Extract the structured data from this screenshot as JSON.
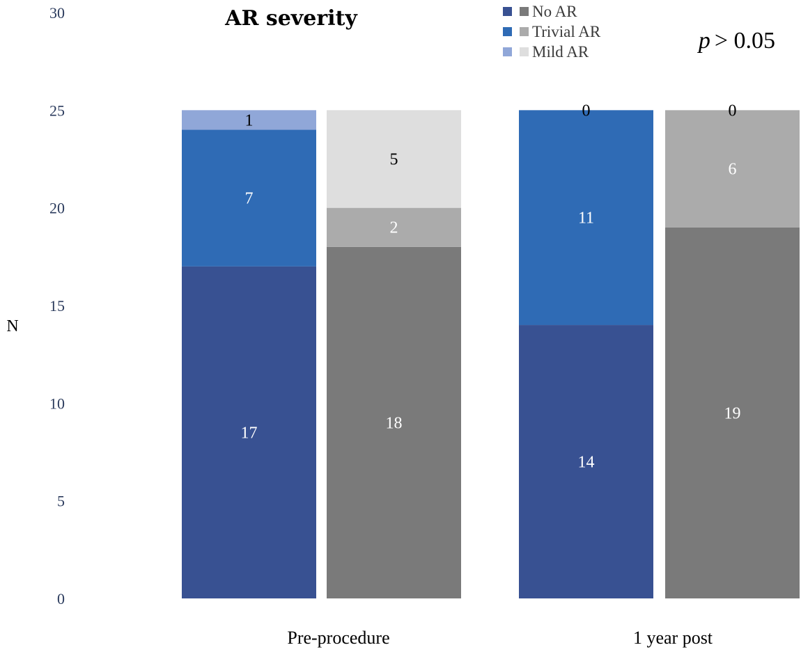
{
  "chart_data": {
    "type": "bar",
    "subtype": "stacked",
    "title": "AR severity",
    "annotation_p": "p",
    "annotation_rest": "> 0.05",
    "ylabel": "N",
    "xlabel": "",
    "ylim": [
      0,
      30
    ],
    "yticks": [
      "0",
      "5",
      "10",
      "15",
      "20",
      "25",
      "30"
    ],
    "grid": false,
    "legend_position": "top-right",
    "legend": [
      {
        "label": "No AR",
        "colors": [
          "#385192",
          "#7a7a7a"
        ]
      },
      {
        "label": "Trivial AR",
        "colors": [
          "#2f6bb5",
          "#ababab"
        ]
      },
      {
        "label": "Mild AR",
        "colors": [
          "#90a7d8",
          "#dedede"
        ]
      }
    ],
    "groups": [
      {
        "label": "Pre-procedure",
        "bars": [
          {
            "name": "blue",
            "segments": [
              {
                "category": "No AR",
                "value": 17,
                "label": "17",
                "color": "#385192",
                "label_color": "#ffffff"
              },
              {
                "category": "Trivial AR",
                "value": 7,
                "label": "7",
                "color": "#2f6bb5",
                "label_color": "#ffffff"
              },
              {
                "category": "Mild AR",
                "value": 1,
                "label": "1",
                "color": "#90a7d8",
                "label_color": "#000000"
              }
            ]
          },
          {
            "name": "gray",
            "segments": [
              {
                "category": "No AR",
                "value": 18,
                "label": "18",
                "color": "#7a7a7a",
                "label_color": "#ffffff"
              },
              {
                "category": "Trivial AR",
                "value": 2,
                "label": "2",
                "color": "#ababab",
                "label_color": "#ffffff"
              },
              {
                "category": "Mild AR",
                "value": 5,
                "label": "5",
                "color": "#dedede",
                "label_color": "#000000"
              }
            ]
          }
        ]
      },
      {
        "label": "1 year post",
        "bars": [
          {
            "name": "blue",
            "segments": [
              {
                "category": "No AR",
                "value": 14,
                "label": "14",
                "color": "#385192",
                "label_color": "#ffffff"
              },
              {
                "category": "Trivial AR",
                "value": 11,
                "label": "11",
                "color": "#2f6bb5",
                "label_color": "#ffffff"
              },
              {
                "category": "Mild AR",
                "value": 0,
                "label": "0",
                "color": "#90a7d8",
                "label_color": "#000000"
              }
            ]
          },
          {
            "name": "gray",
            "segments": [
              {
                "category": "No AR",
                "value": 19,
                "label": "19",
                "color": "#7a7a7a",
                "label_color": "#ffffff"
              },
              {
                "category": "Trivial AR",
                "value": 6,
                "label": "6",
                "color": "#ababab",
                "label_color": "#ffffff"
              },
              {
                "category": "Mild AR",
                "value": 0,
                "label": "0",
                "color": "#dedede",
                "label_color": "#000000"
              }
            ]
          }
        ]
      }
    ]
  }
}
